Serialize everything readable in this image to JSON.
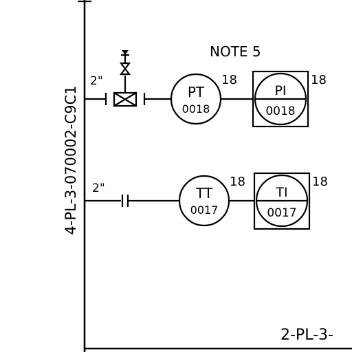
{
  "drawing": {
    "vertical_line_label": "4-PL-3-070002-C9C1",
    "bottom_line_label": "2-PL-3-",
    "note": "NOTE 5"
  },
  "branch_pressure": {
    "size": "2\"",
    "transmitter": {
      "function": "PT",
      "number": "0018",
      "superscript": "18"
    },
    "indicator": {
      "function": "PI",
      "number": "0018",
      "superscript": "18"
    }
  },
  "branch_temperature": {
    "size": "2\"",
    "transmitter": {
      "function": "TT",
      "number": "0017",
      "superscript": "18"
    },
    "indicator": {
      "function": "TI",
      "number": "0017",
      "superscript": "18"
    }
  }
}
